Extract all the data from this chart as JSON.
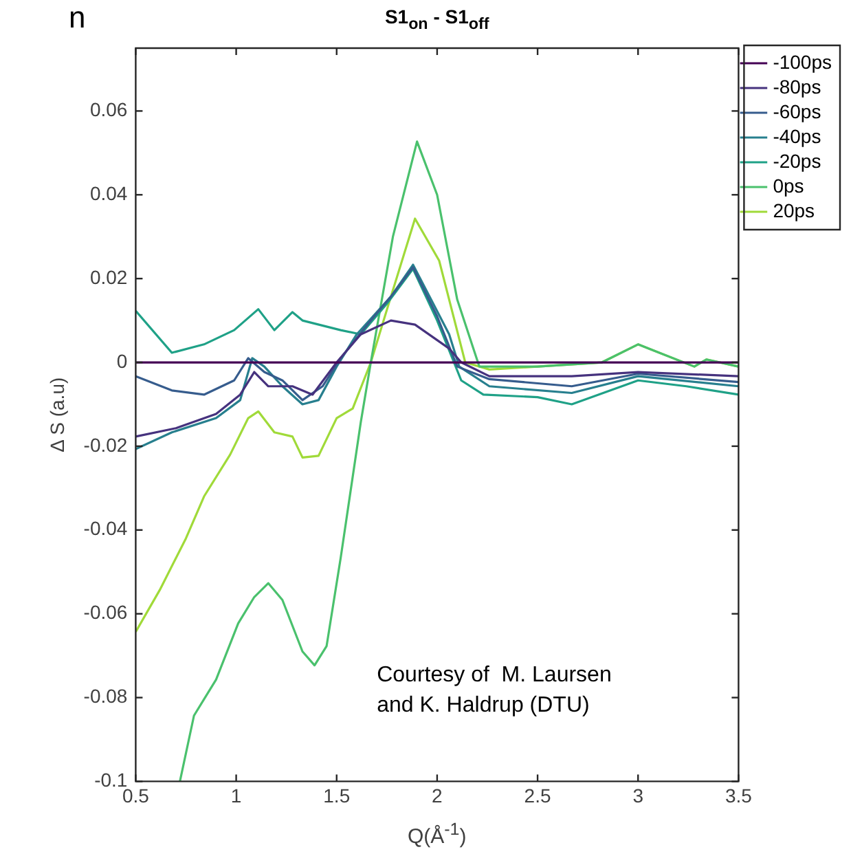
{
  "chart_data": {
    "type": "line",
    "title": "S1$_{on}$ - S1$_{off}$",
    "xlabel": "Q(Å$^{-1}$)",
    "ylabel": "Δ S (a.u)",
    "annotations": [
      "Courtesy of  M. Laursen\nand K. Haldrup (DTU)",
      "n"
    ],
    "xlim": [
      0.5,
      3.5
    ],
    "xticks": [
      0.5,
      1,
      1.5,
      2,
      2.5,
      3,
      3.5
    ],
    "ylim": [
      -0.1,
      0.075
    ],
    "yticks": [
      -0.1,
      -0.08,
      -0.06,
      -0.04,
      -0.02,
      0,
      0.02,
      0.04,
      0.06
    ],
    "grid": false,
    "legend": "right",
    "marker": "none",
    "line_style": "solid",
    "series": [
      {
        "name": "-100ps",
        "color": "#440154",
        "x": [
          0.5,
          3.5
        ],
        "values": [
          0,
          0
        ]
      },
      {
        "name": "-80ps",
        "color": "#46327e",
        "x": [
          0.5,
          0.7,
          0.9,
          1.02,
          1.09,
          1.16,
          1.28,
          1.38,
          1.5,
          1.62,
          1.77,
          1.89,
          2.06,
          2.12,
          2.26,
          2.67,
          3.0,
          3.5
        ],
        "values": [
          -0.0177,
          -0.0157,
          -0.0123,
          -0.0077,
          -0.0023,
          -0.0057,
          -0.0057,
          -0.0077,
          0,
          0.0067,
          0.01,
          0.009,
          0.0033,
          0,
          -0.0033,
          -0.0033,
          -0.0023,
          -0.0033
        ]
      },
      {
        "name": "-60ps",
        "color": "#365c8d",
        "x": [
          0.5,
          0.68,
          0.84,
          0.99,
          1.06,
          1.14,
          1.23,
          1.33,
          1.43,
          1.52,
          1.67,
          1.77,
          1.88,
          2.0,
          2.1,
          2.26,
          2.67,
          3.0,
          3.5
        ],
        "values": [
          -0.0033,
          -0.0067,
          -0.0077,
          -0.0043,
          0.001,
          -0.0023,
          -0.0043,
          -0.009,
          -0.0057,
          0.001,
          0.01,
          0.0157,
          0.0227,
          0.011,
          -0.001,
          -0.004,
          -0.0057,
          -0.0027,
          -0.0047
        ]
      },
      {
        "name": "-40ps",
        "color": "#277f8e",
        "x": [
          0.5,
          0.68,
          0.9,
          1.02,
          1.08,
          1.14,
          1.23,
          1.33,
          1.41,
          1.5,
          1.6,
          1.77,
          1.88,
          2.06,
          2.11,
          2.26,
          2.67,
          3.0,
          3.5
        ],
        "values": [
          -0.0207,
          -0.0167,
          -0.0133,
          -0.009,
          0.001,
          -0.001,
          -0.0057,
          -0.01,
          -0.009,
          -0.001,
          0.0067,
          0.0157,
          0.0233,
          0.0067,
          -0.001,
          -0.0057,
          -0.0073,
          -0.0033,
          -0.0057
        ]
      },
      {
        "name": "-20ps",
        "color": "#1fa187",
        "x": [
          0.5,
          0.68,
          0.84,
          0.99,
          1.11,
          1.19,
          1.28,
          1.33,
          1.52,
          1.62,
          1.75,
          1.88,
          2.0,
          2.12,
          2.23,
          2.5,
          2.67,
          3.0,
          3.24,
          3.5
        ],
        "values": [
          0.0123,
          0.0023,
          0.0043,
          0.0077,
          0.0127,
          0.0077,
          0.012,
          0.01,
          0.0077,
          0.0067,
          0.014,
          0.0223,
          0.01,
          -0.0043,
          -0.0077,
          -0.0083,
          -0.01,
          -0.0043,
          -0.0057,
          -0.0077
        ]
      },
      {
        "name": "0ps",
        "color": "#4ac16d",
        "x": [
          0.72,
          0.79,
          0.9,
          1.01,
          1.09,
          1.16,
          1.23,
          1.33,
          1.39,
          1.45,
          1.52,
          1.62,
          1.67,
          1.78,
          1.9,
          2.0,
          2.1,
          2.21,
          2.5,
          2.82,
          3.0,
          3.28,
          3.34,
          3.5
        ],
        "values": [
          -0.1,
          -0.0843,
          -0.0757,
          -0.0623,
          -0.056,
          -0.0527,
          -0.0567,
          -0.069,
          -0.0723,
          -0.0677,
          -0.0467,
          -0.0143,
          0,
          0.03,
          0.0527,
          0.04,
          0.015,
          -0.001,
          -0.001,
          0,
          0.0043,
          -0.001,
          0.0007,
          -0.001
        ]
      },
      {
        "name": "20ps",
        "color": "#a0da39",
        "x": [
          0.5,
          0.62,
          0.75,
          0.84,
          0.97,
          1.06,
          1.11,
          1.19,
          1.28,
          1.33,
          1.41,
          1.5,
          1.58,
          1.67,
          1.77,
          1.89,
          2.01,
          2.14,
          2.26,
          2.5,
          2.82,
          3.0,
          3.28,
          3.34,
          3.5
        ],
        "values": [
          -0.0643,
          -0.0543,
          -0.042,
          -0.032,
          -0.022,
          -0.0133,
          -0.0117,
          -0.0167,
          -0.0177,
          -0.0227,
          -0.0223,
          -0.0133,
          -0.011,
          0,
          0.0157,
          0.0343,
          0.0243,
          0,
          -0.0017,
          -0.001,
          0,
          0.0043,
          -0.001,
          0.0007,
          -0.001
        ]
      }
    ]
  }
}
